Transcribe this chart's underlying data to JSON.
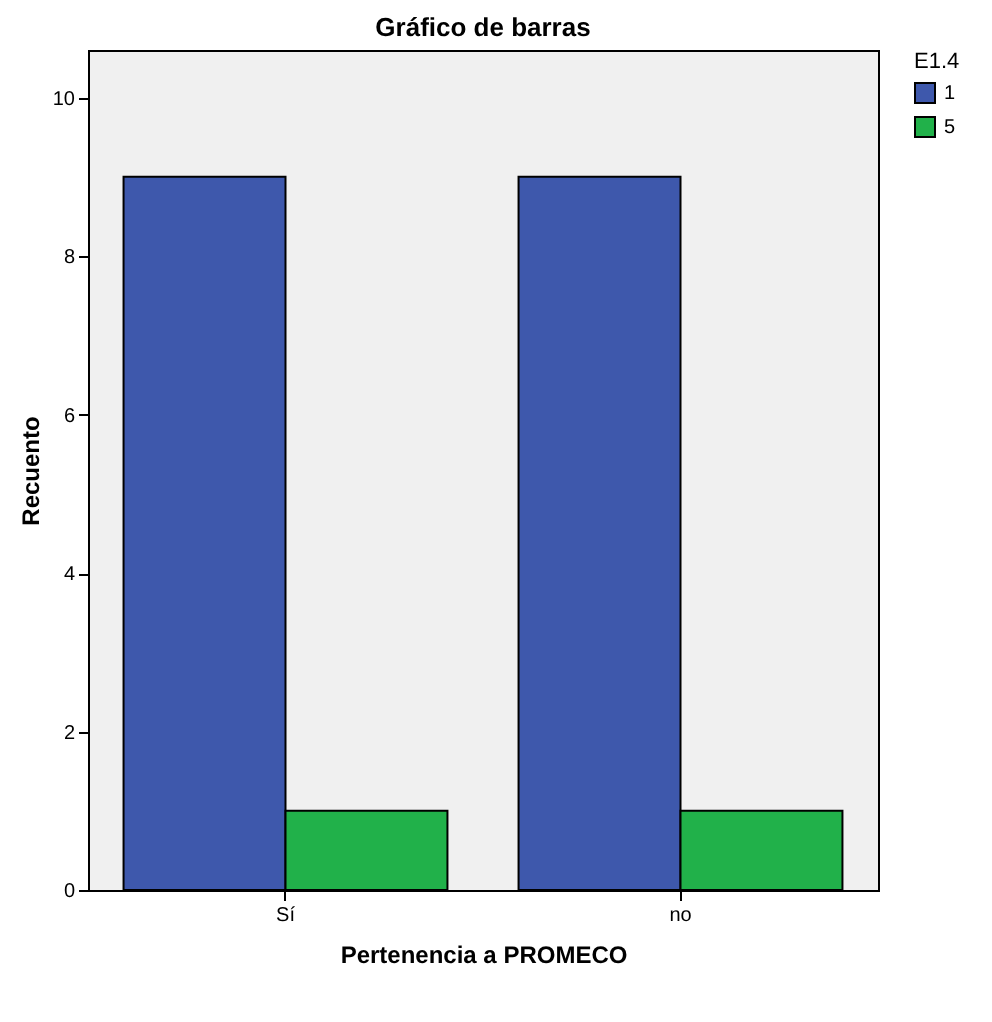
{
  "chart_data": {
    "type": "bar",
    "title": "Gráfico de barras",
    "xlabel": "Pertenencia a PROMECO",
    "ylabel": "Recuento",
    "legend_title": "E1.4",
    "categories": [
      "Sí",
      "no"
    ],
    "series": [
      {
        "name": "1",
        "color": "#3e58ac",
        "values": [
          9,
          9
        ]
      },
      {
        "name": "5",
        "color": "#21b14a",
        "values": [
          1,
          1
        ]
      }
    ],
    "ylim": [
      0,
      10.6
    ],
    "yticks": [
      0,
      2,
      4,
      6,
      8,
      10
    ],
    "grid": false,
    "legend": "top right"
  }
}
